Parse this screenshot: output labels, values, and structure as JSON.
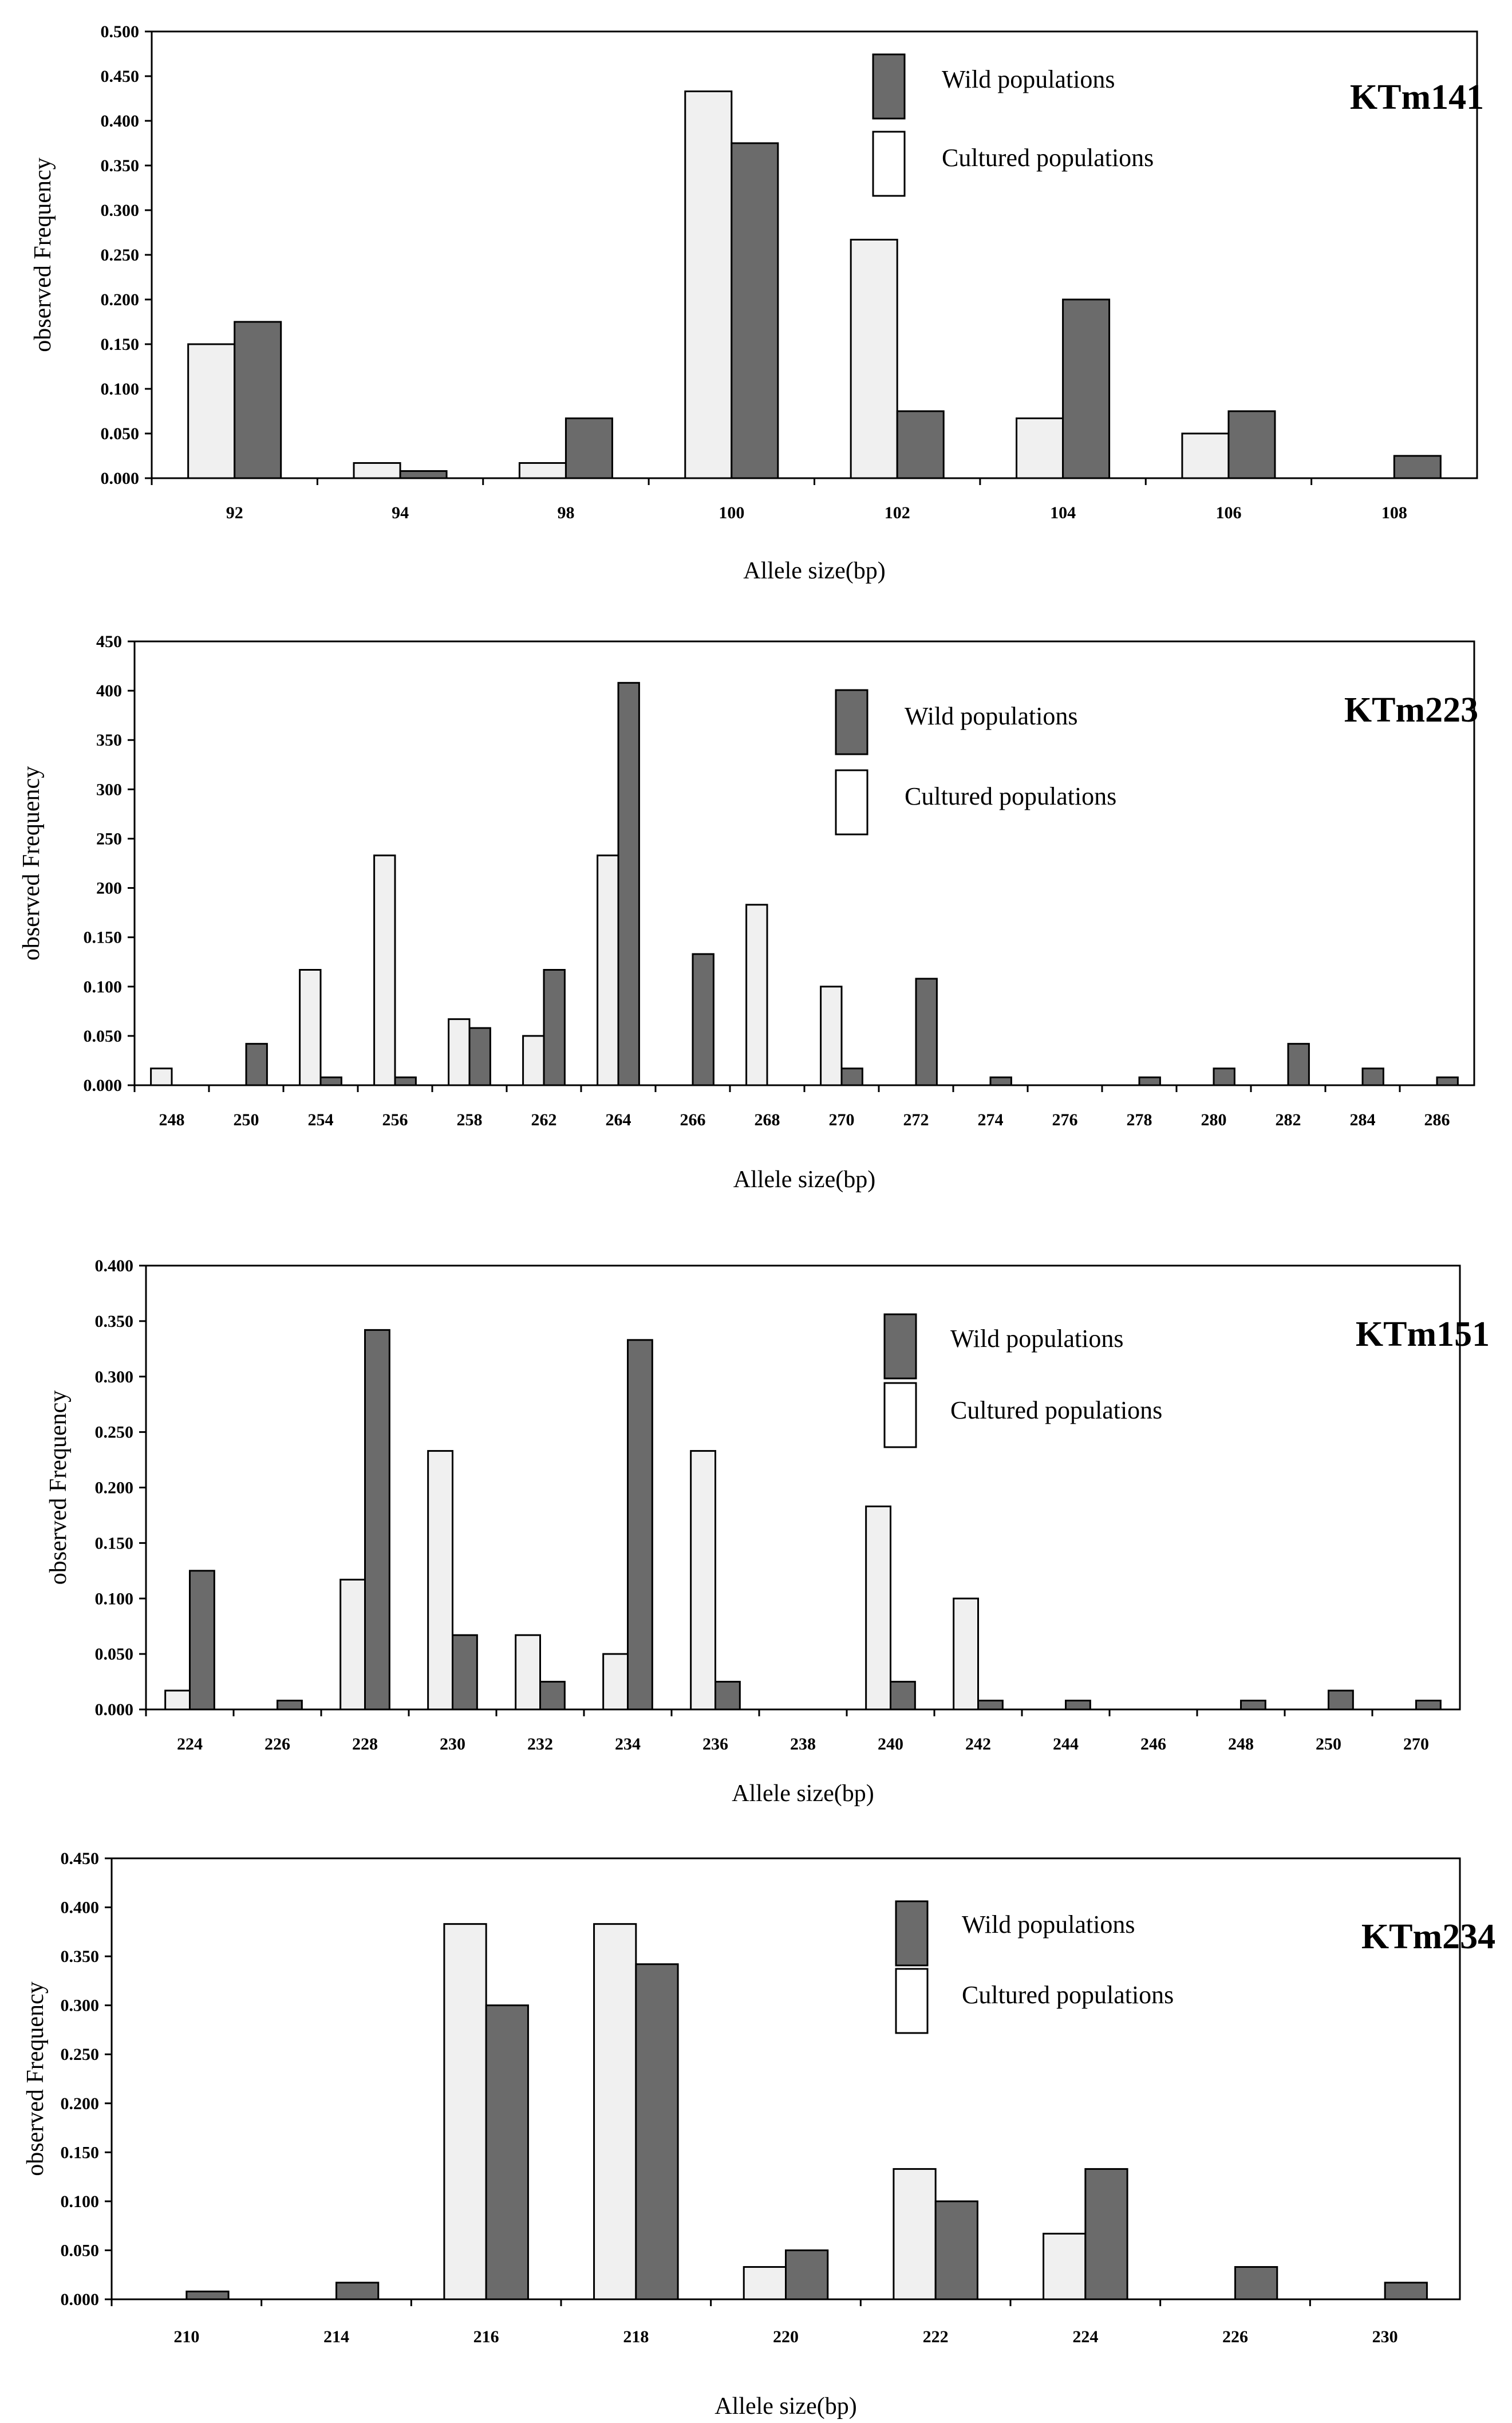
{
  "colors": {
    "wild": "#6b6b6b",
    "cultured": "#f0f0f0",
    "edge": "#000000"
  },
  "chart_data": [
    {
      "type": "bar",
      "title": "KTm141",
      "xlabel": "Allele size(bp)",
      "ylabel": "observed Frequency",
      "ylim": [
        0,
        0.5
      ],
      "yticks": [
        "0.000",
        "0.050",
        "0.100",
        "0.150",
        "0.200",
        "0.250",
        "0.300",
        "0.350",
        "0.400",
        "0.450",
        "0.500"
      ],
      "legend_position": "top-right",
      "categories": [
        "92",
        "94",
        "98",
        "100",
        "102",
        "104",
        "106",
        "108"
      ],
      "series": [
        {
          "name": "Cultured populations",
          "values": [
            0.15,
            0.017,
            0.017,
            0.433,
            0.267,
            0.067,
            0.05,
            0.0
          ]
        },
        {
          "name": "Wild populations",
          "values": [
            0.175,
            0.008,
            0.067,
            0.375,
            0.075,
            0.2,
            0.075,
            0.025
          ]
        }
      ]
    },
    {
      "type": "bar",
      "title": "KTm223",
      "xlabel": "Allele size(bp)",
      "ylabel": "observed Frequency",
      "ylim": [
        0,
        0.45
      ],
      "yticks": [
        "0.000",
        "0.050",
        "0.100",
        "0.150",
        "200",
        "250",
        "300",
        "350",
        "400",
        "450"
      ],
      "legend_position": "top-right",
      "categories": [
        "248",
        "250",
        "254",
        "256",
        "258",
        "262",
        "264",
        "266",
        "268",
        "270",
        "272",
        "274",
        "276",
        "278",
        "280",
        "282",
        "284",
        "286"
      ],
      "series": [
        {
          "name": "Cultured populations",
          "values": [
            0.017,
            0,
            0.117,
            0.233,
            0.067,
            0.05,
            0.233,
            0,
            0.183,
            0.1,
            0,
            0,
            0,
            0,
            0,
            0,
            0,
            0
          ]
        },
        {
          "name": "Wild populations",
          "values": [
            0,
            0.042,
            0.008,
            0.008,
            0.058,
            0.117,
            0.408,
            0.133,
            0,
            0.017,
            0.108,
            0.008,
            0,
            0.008,
            0.017,
            0.042,
            0.017,
            0.008
          ]
        }
      ]
    },
    {
      "type": "bar",
      "title": "KTm151",
      "xlabel": "Allele size(bp)",
      "ylabel": "observed Frequency",
      "ylim": [
        0,
        0.4
      ],
      "yticks": [
        "0.000",
        "0.050",
        "0.100",
        "0.150",
        "0.200",
        "0.250",
        "0.300",
        "0.350",
        "0.400"
      ],
      "legend_position": "top-right",
      "categories": [
        "224",
        "226",
        "228",
        "230",
        "232",
        "234",
        "236",
        "238",
        "240",
        "242",
        "244",
        "246",
        "248",
        "250",
        "270"
      ],
      "series": [
        {
          "name": "Cultured populations",
          "values": [
            0.017,
            0,
            0.117,
            0.233,
            0.067,
            0.05,
            0.233,
            0,
            0.183,
            0.1,
            0,
            0,
            0,
            0,
            0
          ]
        },
        {
          "name": "Wild populations",
          "values": [
            0.125,
            0.008,
            0.342,
            0.067,
            0.025,
            0.333,
            0.025,
            0,
            0.025,
            0.008,
            0.008,
            0,
            0.008,
            0.017,
            0.008
          ]
        }
      ]
    },
    {
      "type": "bar",
      "title": "KTm234",
      "xlabel": "Allele size(bp)",
      "ylabel": "observed Frequency",
      "ylim": [
        0,
        0.45
      ],
      "yticks": [
        "0.000",
        "0.050",
        "0.100",
        "0.150",
        "0.200",
        "0.250",
        "0.300",
        "0.350",
        "0.400",
        "0.450"
      ],
      "legend_position": "top-right",
      "categories": [
        "210",
        "214",
        "216",
        "218",
        "220",
        "222",
        "224",
        "226",
        "230"
      ],
      "series": [
        {
          "name": "Cultured populations",
          "values": [
            0,
            0,
            0.383,
            0.383,
            0.033,
            0.133,
            0.067,
            0,
            0
          ]
        },
        {
          "name": "Wild populations",
          "values": [
            0.008,
            0.017,
            0.3,
            0.342,
            0.05,
            0.1,
            0.133,
            0.033,
            0.017
          ]
        }
      ]
    }
  ]
}
